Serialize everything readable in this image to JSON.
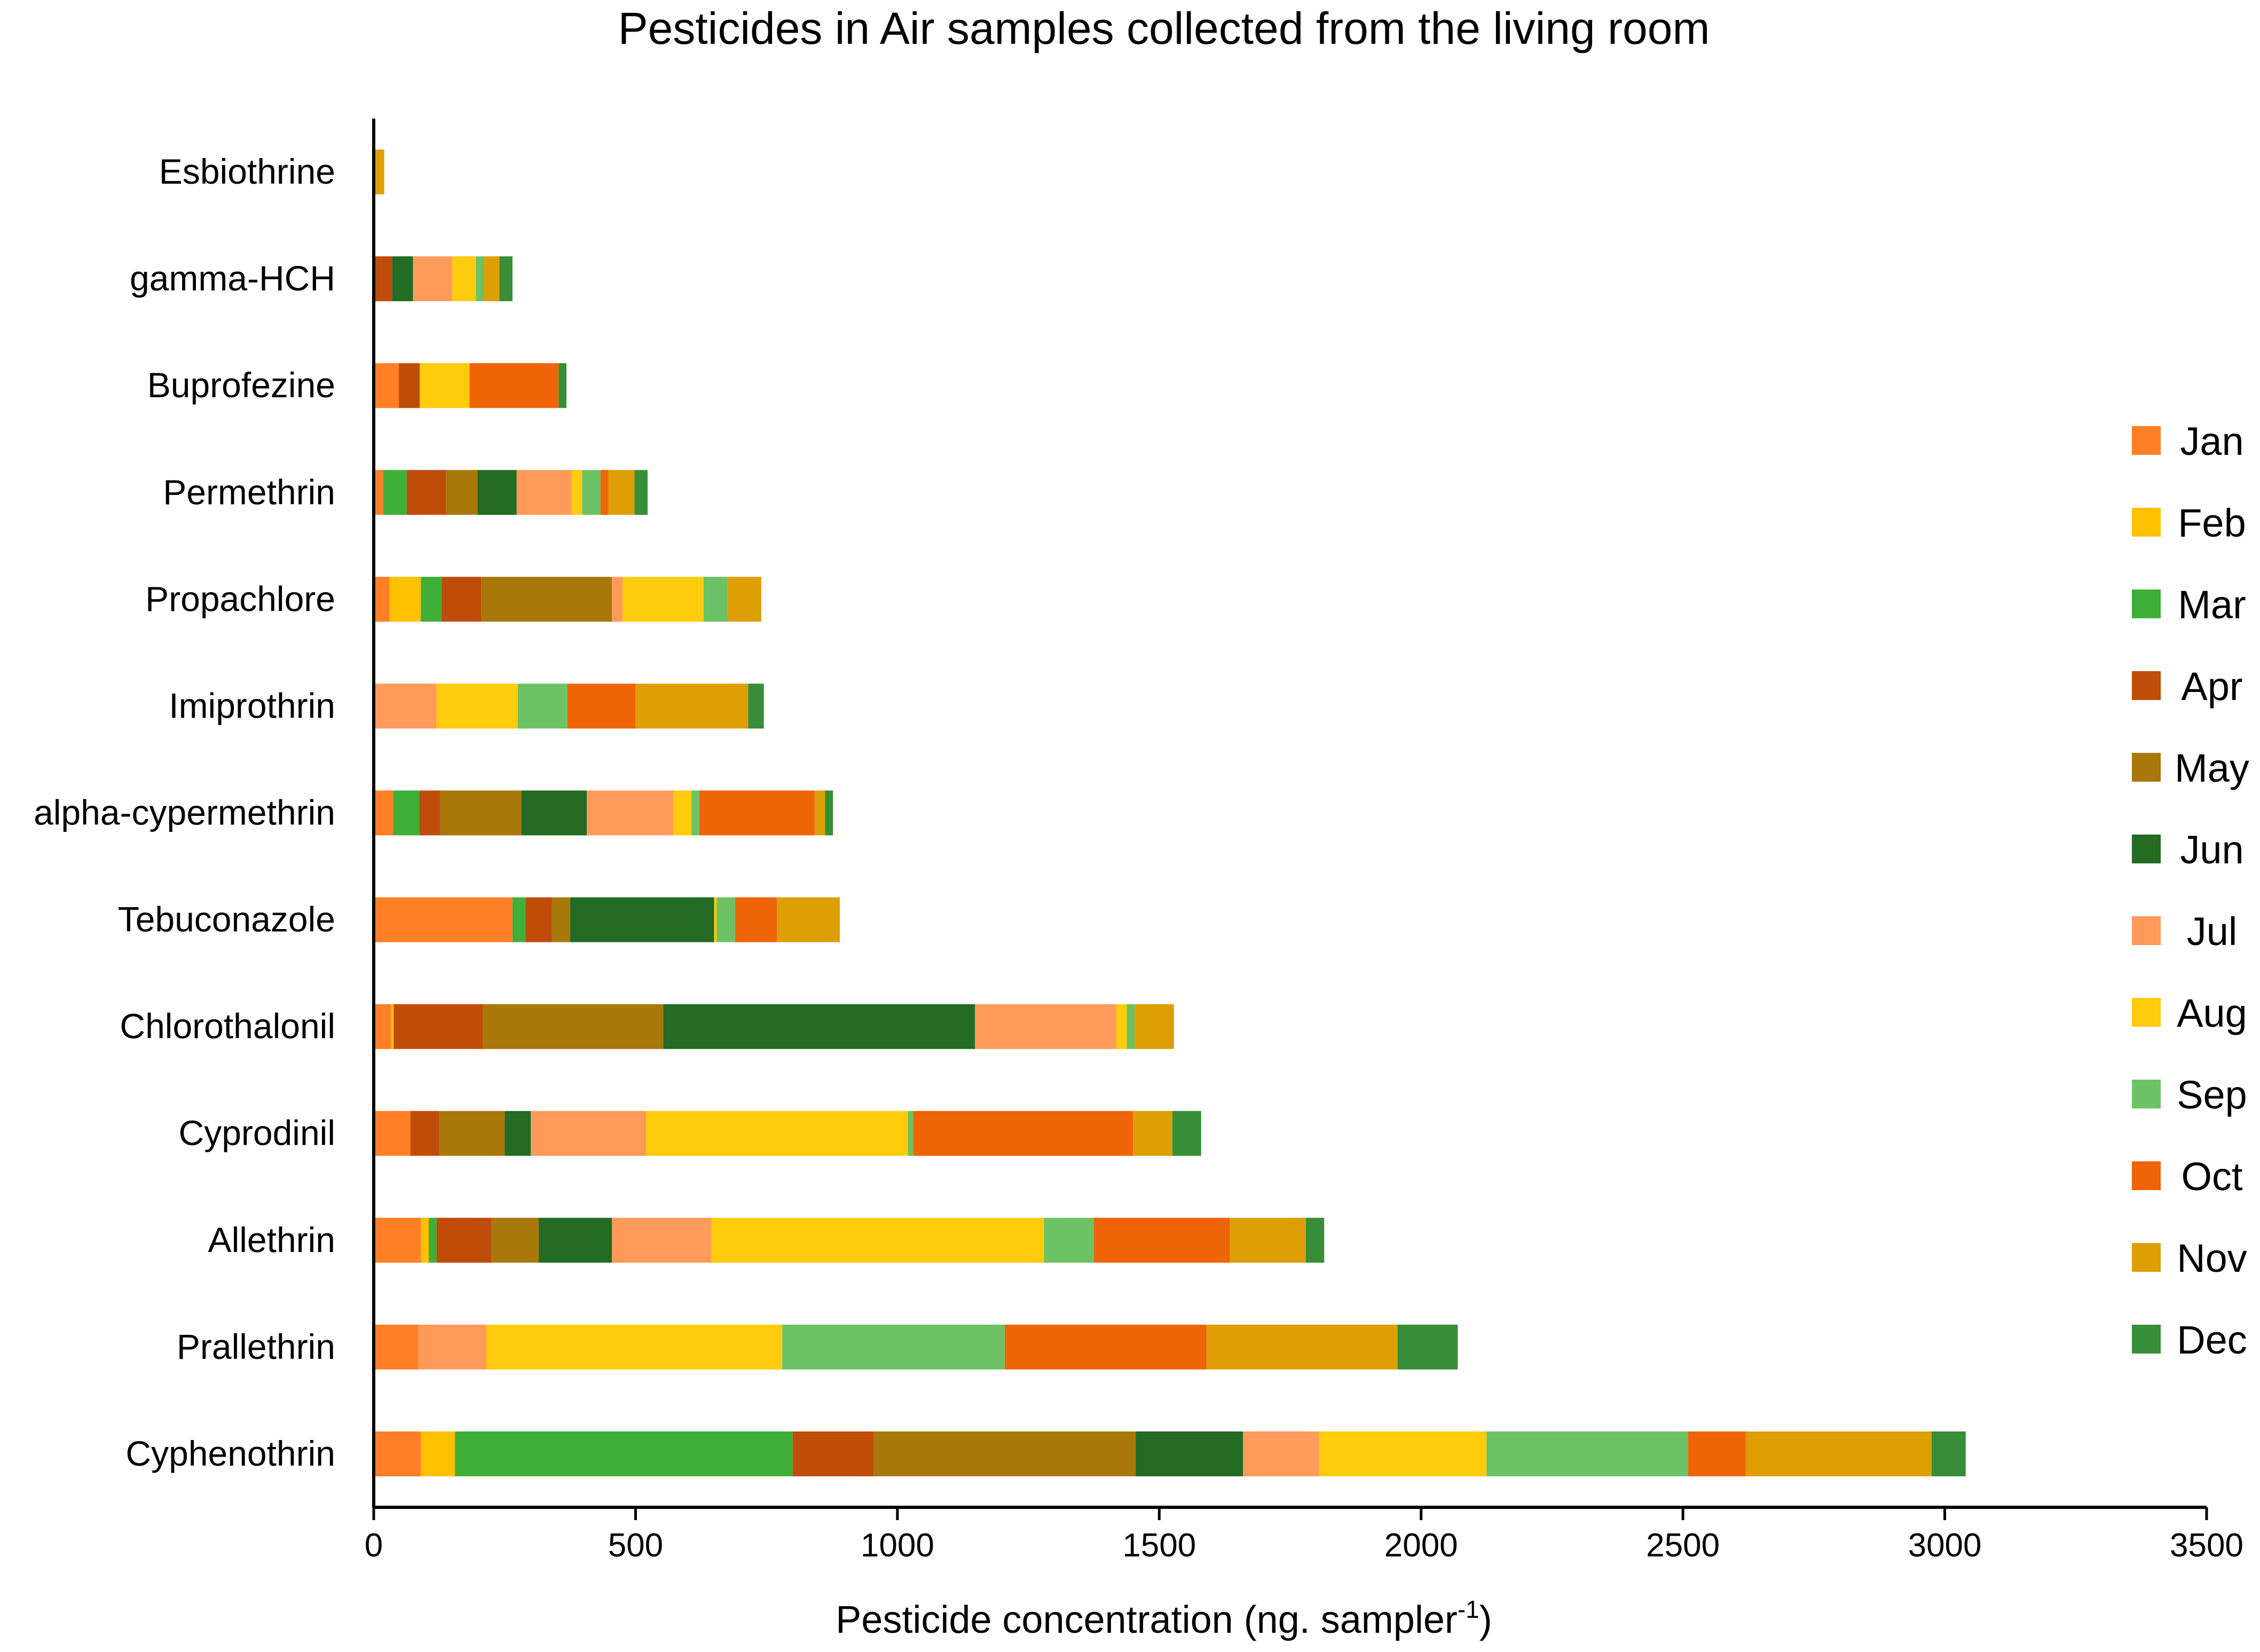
{
  "chart_data": {
    "type": "bar",
    "orientation": "horizontal",
    "stacked": true,
    "title": "Pesticides in Air samples collected from the living room",
    "xlabel": "Pesticide concentration (ng. sampler",
    "xlabel_superscript": "-1",
    "xlabel_suffix": ")",
    "xlim": [
      0,
      3500
    ],
    "xticks": [
      0,
      500,
      1000,
      1500,
      2000,
      2500,
      3000,
      3500
    ],
    "grid": false,
    "legend_position": "right",
    "categories": [
      "Esbiothrine",
      "gamma-HCH",
      "Buprofezine",
      "Permethrin",
      "Propachlore",
      "Imiprothrin",
      "alpha-cypermethrin",
      "Tebuconazole",
      "Chlorothalonil",
      "Cyprodinil",
      "Allethrin",
      "Prallethrin",
      "Cyphenothrin"
    ],
    "series": [
      {
        "name": "Jan",
        "color": "#FF7F27",
        "values": [
          0,
          0,
          48,
          18,
          30,
          0,
          37,
          265,
          33,
          70,
          90,
          85,
          90
        ]
      },
      {
        "name": "Feb",
        "color": "#FFC000",
        "values": [
          0,
          0,
          0,
          0,
          60,
          0,
          0,
          0,
          5,
          0,
          15,
          0,
          65
        ]
      },
      {
        "name": "Mar",
        "color": "#3EAF38",
        "values": [
          0,
          0,
          0,
          45,
          40,
          0,
          50,
          25,
          0,
          0,
          15,
          0,
          645
        ]
      },
      {
        "name": "Apr",
        "color": "#C04C0A",
        "values": [
          0,
          35,
          40,
          75,
          75,
          0,
          40,
          50,
          170,
          55,
          105,
          0,
          155
        ]
      },
      {
        "name": "May",
        "color": "#A8780A",
        "values": [
          0,
          0,
          0,
          60,
          250,
          0,
          155,
          35,
          345,
          125,
          90,
          0,
          500
        ]
      },
      {
        "name": "Jun",
        "color": "#246B24",
        "values": [
          0,
          40,
          0,
          75,
          0,
          0,
          125,
          275,
          595,
          50,
          140,
          0,
          205
        ]
      },
      {
        "name": "Jul",
        "color": "#FF9A5A",
        "values": [
          0,
          75,
          0,
          105,
          20,
          120,
          165,
          0,
          270,
          220,
          190,
          130,
          145
        ]
      },
      {
        "name": "Aug",
        "color": "#FFCC0D",
        "values": [
          0,
          45,
          95,
          20,
          155,
          155,
          35,
          5,
          20,
          500,
          635,
          565,
          320
        ]
      },
      {
        "name": "Sep",
        "color": "#6CC264",
        "values": [
          0,
          15,
          0,
          35,
          45,
          95,
          15,
          35,
          15,
          10,
          95,
          425,
          385
        ]
      },
      {
        "name": "Oct",
        "color": "#EF6407",
        "values": [
          0,
          0,
          170,
          15,
          0,
          130,
          220,
          80,
          0,
          420,
          260,
          385,
          110
        ]
      },
      {
        "name": "Nov",
        "color": "#DD9F05",
        "values": [
          20,
          30,
          0,
          50,
          65,
          215,
          20,
          120,
          75,
          75,
          145,
          365,
          355
        ]
      },
      {
        "name": "Dec",
        "color": "#388E38",
        "values": [
          0,
          25,
          15,
          25,
          0,
          30,
          15,
          0,
          0,
          55,
          35,
          115,
          65
        ]
      }
    ]
  }
}
